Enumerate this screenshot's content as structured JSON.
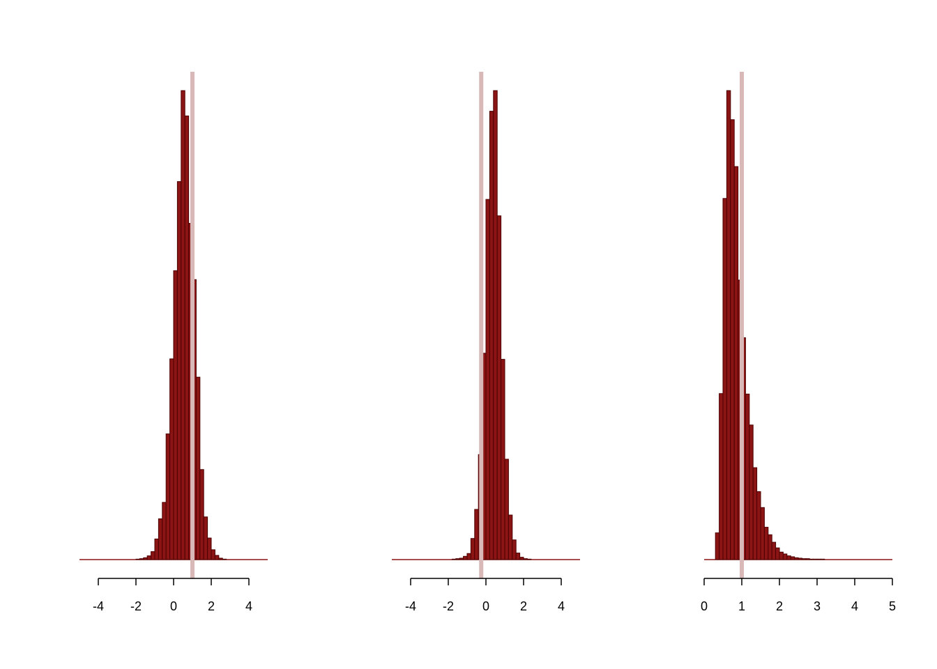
{
  "colors": {
    "bar_fill": "#8b1414",
    "bar_stroke": "#4d0000",
    "ref_line": "#d9b8b8",
    "axis": "#000000"
  },
  "chart_data": [
    {
      "type": "bar",
      "title": "",
      "xlabel": "",
      "ylabel": "",
      "xlim": [
        -5,
        5
      ],
      "xticks": [
        -4,
        -2,
        0,
        2,
        4
      ],
      "bin_width": 0.2,
      "ref_line_x": 1.0,
      "bins_start": [
        -5.0,
        -4.8,
        -4.6,
        -4.4,
        -4.2,
        -4.0,
        -3.8,
        -3.6,
        -3.4,
        -3.2,
        -3.0,
        -2.8,
        -2.6,
        -2.4,
        -2.2,
        -2.0,
        -1.8,
        -1.6,
        -1.4,
        -1.2,
        -1.0,
        -0.8,
        -0.6,
        -0.4,
        -0.2,
        0.0,
        0.2,
        0.4,
        0.6,
        0.8,
        1.0,
        1.2,
        1.4,
        1.6,
        1.8,
        2.0,
        2.2,
        2.4,
        2.6,
        2.8,
        3.0,
        3.2,
        3.4,
        3.6,
        3.8,
        4.0,
        4.2,
        4.4,
        4.6,
        4.8
      ],
      "values": [
        0,
        0,
        0,
        0,
        0,
        0,
        0,
        0,
        0,
        0,
        0,
        0,
        0,
        0,
        0,
        0.001,
        0.002,
        0.004,
        0.008,
        0.017,
        0.044,
        0.087,
        0.122,
        0.268,
        0.428,
        0.616,
        0.806,
        1.0,
        0.946,
        0.717,
        0.597,
        0.389,
        0.192,
        0.091,
        0.046,
        0.021,
        0.009,
        0.003,
        0.001,
        0,
        0,
        0,
        0,
        0,
        0,
        0,
        0,
        0,
        0,
        0
      ],
      "ylim": [
        0,
        1.04
      ]
    },
    {
      "type": "bar",
      "title": "",
      "xlabel": "",
      "ylabel": "",
      "xlim": [
        -5,
        5
      ],
      "xticks": [
        -4,
        -2,
        0,
        2,
        4
      ],
      "bin_width": 0.2,
      "ref_line_x": -0.25,
      "bins_start": [
        -5.0,
        -4.8,
        -4.6,
        -4.4,
        -4.2,
        -4.0,
        -3.8,
        -3.6,
        -3.4,
        -3.2,
        -3.0,
        -2.8,
        -2.6,
        -2.4,
        -2.2,
        -2.0,
        -1.8,
        -1.6,
        -1.4,
        -1.2,
        -1.0,
        -0.8,
        -0.6,
        -0.4,
        -0.2,
        0.0,
        0.2,
        0.4,
        0.6,
        0.8,
        1.0,
        1.2,
        1.4,
        1.6,
        1.8,
        2.0,
        2.2,
        2.4,
        2.6,
        2.8,
        3.0,
        3.2,
        3.4,
        3.6,
        3.8,
        4.0,
        4.2,
        4.4,
        4.6,
        4.8
      ],
      "values": [
        0,
        0,
        0,
        0,
        0,
        0,
        0,
        0,
        0,
        0,
        0,
        0,
        0,
        0,
        0,
        0,
        0.001,
        0.002,
        0.003,
        0.007,
        0.013,
        0.045,
        0.107,
        0.224,
        0.44,
        0.768,
        0.956,
        1.0,
        0.733,
        0.427,
        0.214,
        0.095,
        0.042,
        0.014,
        0.005,
        0.002,
        0.001,
        0,
        0,
        0,
        0,
        0,
        0,
        0,
        0,
        0,
        0,
        0,
        0,
        0
      ],
      "ylim": [
        0,
        1.04
      ]
    },
    {
      "type": "bar",
      "title": "",
      "xlabel": "",
      "ylabel": "",
      "xlim": [
        0,
        5
      ],
      "xticks": [
        0,
        1,
        2,
        3,
        4,
        5
      ],
      "bin_width": 0.1,
      "ref_line_x": 1.0,
      "bins_start": [
        0.0,
        0.1,
        0.2,
        0.3,
        0.4,
        0.5,
        0.6,
        0.7,
        0.8,
        0.9,
        1.0,
        1.1,
        1.2,
        1.3,
        1.4,
        1.5,
        1.6,
        1.7,
        1.8,
        1.9,
        2.0,
        2.1,
        2.2,
        2.3,
        2.4,
        2.5,
        2.6,
        2.7,
        2.8,
        2.9,
        3.0,
        3.1,
        3.2,
        3.3,
        3.4,
        3.5,
        3.6,
        3.7,
        3.8,
        3.9,
        4.0,
        4.1,
        4.2,
        4.3,
        4.4,
        4.5,
        4.6,
        4.7,
        4.8,
        4.9
      ],
      "values": [
        0,
        0,
        0,
        0.057,
        0.354,
        0.77,
        1.0,
        0.938,
        0.838,
        0.596,
        0.473,
        0.353,
        0.287,
        0.196,
        0.145,
        0.111,
        0.069,
        0.053,
        0.037,
        0.025,
        0.016,
        0.012,
        0.008,
        0.006,
        0.004,
        0.003,
        0.002,
        0.002,
        0.001,
        0.001,
        0.001,
        0.001,
        0,
        0,
        0,
        0,
        0,
        0,
        0,
        0,
        0,
        0,
        0,
        0,
        0,
        0,
        0,
        0,
        0,
        0
      ],
      "ylim": [
        0,
        1.04
      ]
    }
  ]
}
